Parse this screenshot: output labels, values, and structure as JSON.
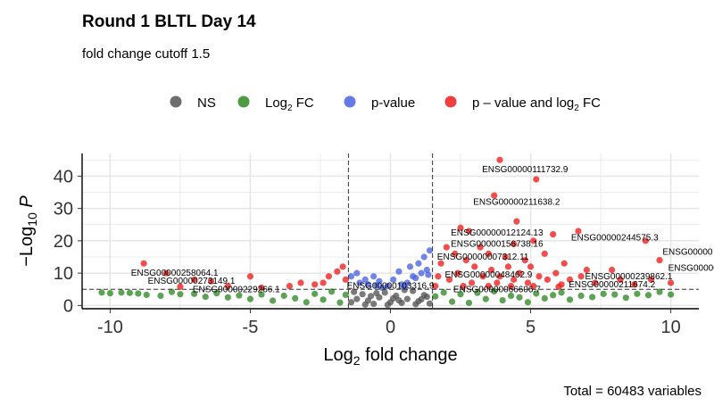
{
  "title": "Round 1 BLTL Day 14",
  "subtitle": "fold change cutoff 1.5",
  "caption": "Total = 60483 variables",
  "colors": {
    "NS": "#555555",
    "log2fc": "#2e8b22",
    "pvalue": "#4a63e0",
    "both": "#ee1c1c",
    "grid": "#e6e6e6",
    "panel": "#ffffff"
  },
  "legend": [
    {
      "key": "NS",
      "label": "NS",
      "sub": "",
      "suffix": ""
    },
    {
      "key": "log2fc",
      "label": "Log",
      "sub": "2",
      "suffix": " FC"
    },
    {
      "key": "pvalue",
      "label": "p-value",
      "sub": "",
      "suffix": ""
    },
    {
      "key": "both",
      "label": "p – value and log",
      "sub": "2",
      "suffix": " FC"
    }
  ],
  "chart_data": {
    "type": "scatter",
    "xlabel": "Log2 fold change",
    "ylabel": "−Log10 P",
    "xlim": [
      -11,
      11
    ],
    "ylim": [
      -1,
      47
    ],
    "xticks": [
      -10,
      -5,
      0,
      5,
      10
    ],
    "yticks": [
      0,
      10,
      20,
      30,
      40
    ],
    "fc_cutoff_lines": [
      -1.5,
      1.5
    ],
    "p_cutoff_line": 5,
    "grid": true,
    "legend_position": "top",
    "points": {
      "NS": [
        [
          -1.4,
          1
        ],
        [
          -1.2,
          2
        ],
        [
          -1.0,
          3.5
        ],
        [
          -0.8,
          1.5
        ],
        [
          -0.6,
          0.5
        ],
        [
          -0.4,
          2.5
        ],
        [
          -0.2,
          4
        ],
        [
          0.0,
          1
        ],
        [
          0.2,
          3
        ],
        [
          0.4,
          0.8
        ],
        [
          0.6,
          2
        ],
        [
          0.8,
          4.5
        ],
        [
          1.0,
          1.3
        ],
        [
          1.2,
          3.2
        ],
        [
          1.4,
          0.6
        ],
        [
          -1.3,
          4.2
        ],
        [
          -0.9,
          0.3
        ],
        [
          -0.5,
          3.8
        ],
        [
          0.1,
          2.2
        ],
        [
          0.5,
          4.8
        ],
        [
          0.9,
          0.4
        ],
        [
          1.3,
          2.7
        ],
        [
          -0.1,
          0.2
        ],
        [
          0.3,
          1.6
        ],
        [
          -0.7,
          2.9
        ],
        [
          1.1,
          1.9
        ]
      ],
      "log2fc": [
        [
          -10.3,
          4
        ],
        [
          -10.0,
          3.8
        ],
        [
          -9.6,
          4
        ],
        [
          -9.3,
          3.9
        ],
        [
          -9.0,
          3.7
        ],
        [
          -8.7,
          3.3
        ],
        [
          -8.2,
          3
        ],
        [
          -7.8,
          4.2
        ],
        [
          -7.5,
          3.5
        ],
        [
          -7.0,
          3.6
        ],
        [
          -6.6,
          2.7
        ],
        [
          -6.2,
          3.8
        ],
        [
          -5.8,
          2.5
        ],
        [
          -5.4,
          3.1
        ],
        [
          -5.0,
          2
        ],
        [
          -4.6,
          3.4
        ],
        [
          -4.2,
          1.5
        ],
        [
          -3.8,
          3
        ],
        [
          -3.4,
          2.2
        ],
        [
          -3.0,
          1
        ],
        [
          -2.7,
          3.6
        ],
        [
          -2.4,
          1.8
        ],
        [
          -2.1,
          4.3
        ],
        [
          -1.8,
          0.9
        ],
        [
          -1.6,
          3.3
        ],
        [
          1.6,
          2.8
        ],
        [
          1.9,
          4
        ],
        [
          2.2,
          1.2
        ],
        [
          2.5,
          3.5
        ],
        [
          2.8,
          0.8
        ],
        [
          3.1,
          3.9
        ],
        [
          3.4,
          2
        ],
        [
          3.7,
          4.4
        ],
        [
          4.0,
          1.6
        ],
        [
          4.3,
          3
        ],
        [
          4.6,
          2.5
        ],
        [
          4.9,
          1
        ],
        [
          5.2,
          3.7
        ],
        [
          5.5,
          2.2
        ],
        [
          5.8,
          3.2
        ],
        [
          6.1,
          4
        ],
        [
          6.4,
          1.8
        ],
        [
          6.8,
          3
        ],
        [
          7.2,
          2.6
        ],
        [
          7.6,
          3.6
        ],
        [
          8.0,
          3.4
        ],
        [
          8.4,
          2.4
        ],
        [
          8.8,
          3.6
        ],
        [
          9.2,
          3.2
        ],
        [
          9.6,
          4.2
        ],
        [
          10.0,
          3.4
        ]
      ],
      "pvalue": [
        [
          -1.4,
          9
        ],
        [
          -1.2,
          10
        ],
        [
          -1.1,
          7
        ],
        [
          -0.9,
          8
        ],
        [
          -0.8,
          6.5
        ],
        [
          -0.6,
          9
        ],
        [
          -0.4,
          7.5
        ],
        [
          -0.3,
          5.5
        ],
        [
          -0.1,
          6
        ],
        [
          0.1,
          8
        ],
        [
          0.3,
          10.5
        ],
        [
          0.4,
          6.5
        ],
        [
          0.6,
          7
        ],
        [
          0.7,
          12
        ],
        [
          0.8,
          9
        ],
        [
          0.9,
          8.5
        ],
        [
          1.0,
          13
        ],
        [
          1.1,
          10
        ],
        [
          1.2,
          15
        ],
        [
          1.3,
          11
        ],
        [
          1.35,
          9.5
        ],
        [
          1.4,
          17
        ],
        [
          0.5,
          5.8
        ],
        [
          -0.5,
          6.2
        ]
      ],
      "both": [
        [
          3.9,
          45
        ],
        [
          5.2,
          39
        ],
        [
          3.7,
          34
        ],
        [
          4.5,
          26
        ],
        [
          2.8,
          23
        ],
        [
          5.8,
          22
        ],
        [
          6.7,
          23
        ],
        [
          9.1,
          20
        ],
        [
          4.4,
          19
        ],
        [
          5.1,
          20
        ],
        [
          2.5,
          24
        ],
        [
          3.2,
          18
        ],
        [
          3.5,
          16
        ],
        [
          4.1,
          15
        ],
        [
          4.8,
          14
        ],
        [
          5.5,
          16
        ],
        [
          6.2,
          13
        ],
        [
          7.0,
          11
        ],
        [
          7.9,
          11
        ],
        [
          9.6,
          14
        ],
        [
          2.0,
          18
        ],
        [
          1.8,
          13
        ],
        [
          2.3,
          16
        ],
        [
          2.7,
          14
        ],
        [
          3.0,
          12
        ],
        [
          3.6,
          11
        ],
        [
          3.9,
          9
        ],
        [
          4.2,
          12
        ],
        [
          4.6,
          10
        ],
        [
          5.0,
          12
        ],
        [
          5.3,
          9
        ],
        [
          5.9,
          10
        ],
        [
          6.4,
          8
        ],
        [
          6.8,
          9
        ],
        [
          7.3,
          7
        ],
        [
          8.2,
          8
        ],
        [
          8.7,
          6.5
        ],
        [
          9.3,
          8
        ],
        [
          10.0,
          7
        ],
        [
          1.7,
          9
        ],
        [
          2.1,
          8
        ],
        [
          2.4,
          10
        ],
        [
          2.9,
          7
        ],
        [
          3.3,
          9
        ],
        [
          3.8,
          7
        ],
        [
          4.4,
          8
        ],
        [
          4.9,
          7
        ],
        [
          5.6,
          8
        ],
        [
          6.1,
          6.5
        ],
        [
          1.6,
          6
        ],
        [
          2.6,
          6
        ],
        [
          3.5,
          6
        ],
        [
          4.3,
          6
        ],
        [
          5.1,
          6
        ],
        [
          6.0,
          5.8
        ],
        [
          -8.8,
          13
        ],
        [
          -8.0,
          10
        ],
        [
          -7.0,
          8
        ],
        [
          -6.4,
          7.5
        ],
        [
          -5.0,
          9
        ],
        [
          -4.6,
          5.5
        ],
        [
          -3.2,
          7
        ],
        [
          -2.7,
          6.5
        ],
        [
          -2.2,
          9
        ],
        [
          -1.9,
          10.5
        ],
        [
          -1.7,
          12
        ],
        [
          -1.6,
          8
        ],
        [
          -2.4,
          7
        ],
        [
          -3.6,
          6
        ],
        [
          -5.8,
          6
        ],
        [
          -7.5,
          5.8
        ]
      ]
    },
    "annotations": [
      {
        "text": "ENSG00000111732.9",
        "x": 4.8,
        "y": 42
      },
      {
        "text": "ENSG00000211638.2",
        "x": 4.5,
        "y": 32
      },
      {
        "text": "ENSG00000012124.13",
        "x": 3.8,
        "y": 22.5
      },
      {
        "text": "ENSG00000156738.16",
        "x": 3.8,
        "y": 19
      },
      {
        "text": "ENSG00000244575.3",
        "x": 8.0,
        "y": 21
      },
      {
        "text": "ENSG00000007312.11",
        "x": 3.3,
        "y": 15
      },
      {
        "text": "ENSG00000",
        "x": 10.6,
        "y": 16.5
      },
      {
        "text": "ENSG00000",
        "x": 10.8,
        "y": 11.5
      },
      {
        "text": "ENSG00000258064.1",
        "x": -7.7,
        "y": 10
      },
      {
        "text": "ENSG00000273149.1",
        "x": -7.1,
        "y": 7.6
      },
      {
        "text": "ENSG00000229266.1",
        "x": -5.5,
        "y": 5
      },
      {
        "text": "ENSG00000103316.9",
        "x": 0.0,
        "y": 6
      },
      {
        "text": "ENSG00000048462.9",
        "x": 3.5,
        "y": 9.5
      },
      {
        "text": "ENSG00000239862.1",
        "x": 8.5,
        "y": 9
      },
      {
        "text": "ENSG00000211674.2",
        "x": 7.9,
        "y": 6.5
      },
      {
        "text": "ENSG00000066606.7",
        "x": 3.8,
        "y": 5
      }
    ]
  }
}
